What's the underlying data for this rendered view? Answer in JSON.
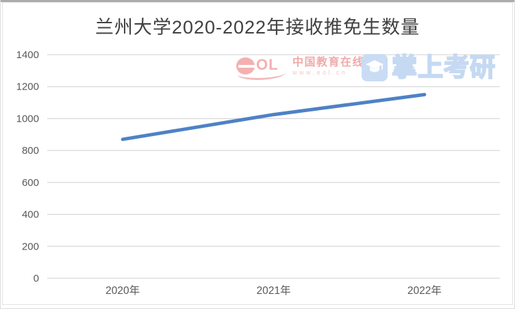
{
  "chart_data": {
    "type": "line",
    "title": "兰州大学2020-2022年接收推免生数量",
    "categories": [
      "2020年",
      "2021年",
      "2022年"
    ],
    "series": [
      {
        "name": "接收推免生数量",
        "values": [
          870,
          1025,
          1150
        ]
      }
    ],
    "xlabel": "",
    "ylabel": "",
    "ylim": [
      0,
      1400
    ],
    "yticks": [
      0,
      200,
      400,
      600,
      800,
      1000,
      1200,
      1400
    ],
    "grid": true,
    "legend": false,
    "line_color": "#4e82c5",
    "grid_color": "#d9d9d9",
    "tick_label_color": "#595959",
    "title_color": "#404040"
  },
  "watermarks": {
    "eol": {
      "logo_text": "OL",
      "name_text": "中国教育在线",
      "url_text": "www.eol.cn",
      "color": "#f3a3a3"
    },
    "zsky": {
      "icon_name": "graduation-cap-icon",
      "text": "掌上考研",
      "color": "#c9dcf4"
    }
  }
}
